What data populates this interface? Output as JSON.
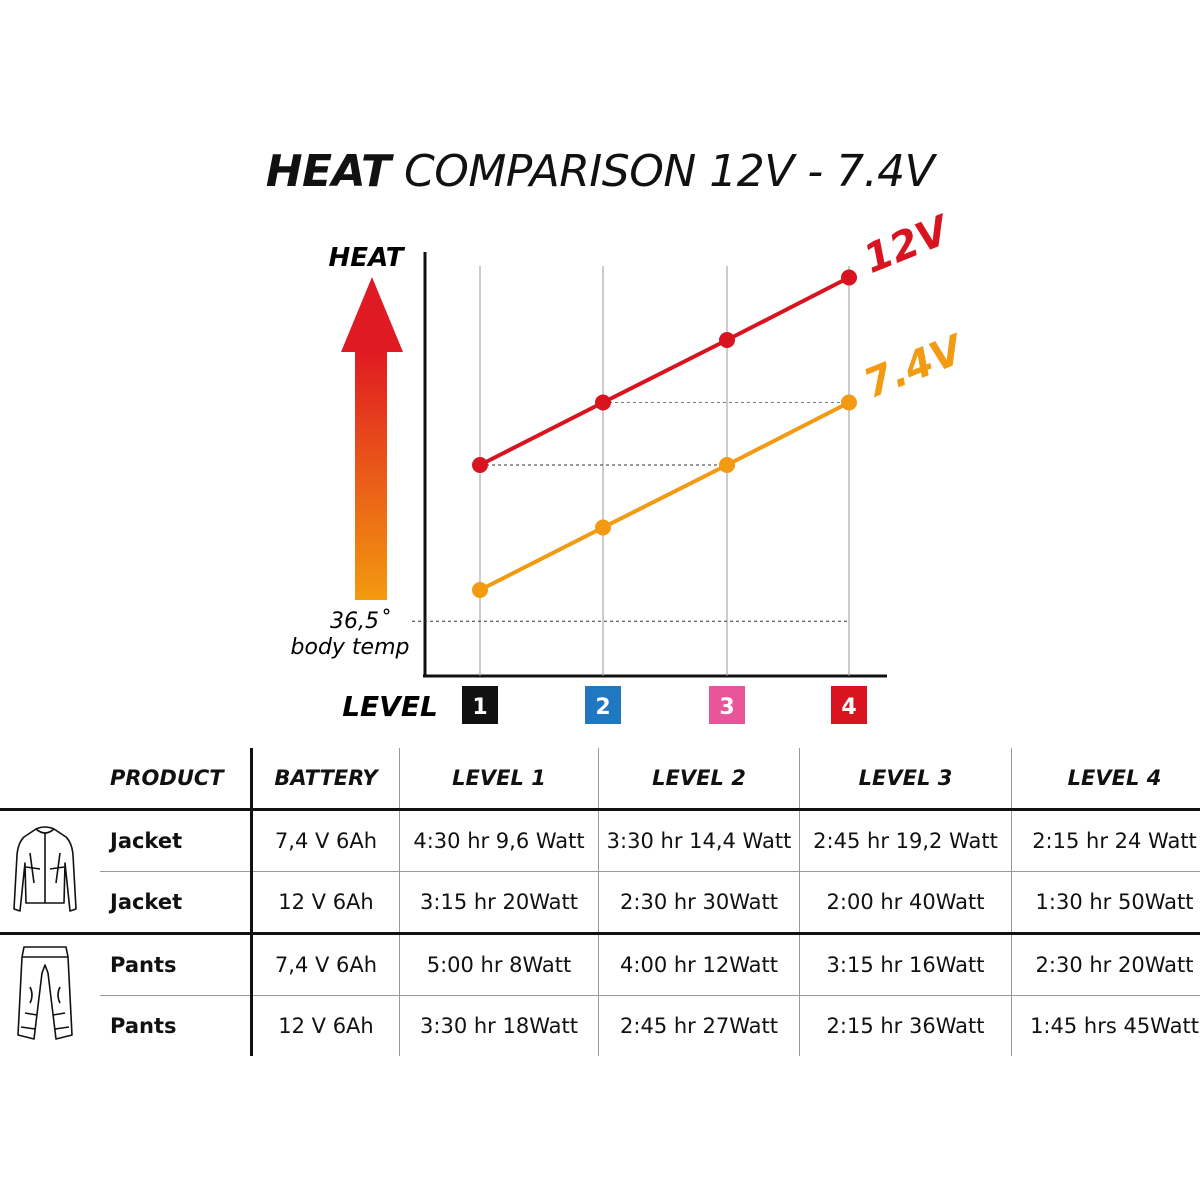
{
  "title": {
    "bold": "HEAT",
    "rest": "COMPARISON 12V - 7.4V"
  },
  "colors": {
    "red": "#d7141f",
    "orange": "#f29a11",
    "black": "#111111",
    "blue": "#1f78c0",
    "pink": "#e8559a"
  },
  "chart_data": {
    "type": "line",
    "ylabel": "HEAT",
    "xlabel": "LEVEL",
    "baseline_label": [
      "36,5˚",
      "body temp"
    ],
    "categories": [
      "1",
      "2",
      "3",
      "4"
    ],
    "category_colors": [
      "#111111",
      "#1f78c0",
      "#e8559a",
      "#d7141f"
    ],
    "series": [
      {
        "name": "12V",
        "color": "#d7141f",
        "values": [
          3,
          4,
          5,
          6
        ]
      },
      {
        "name": "7.4V",
        "color": "#f29a11",
        "values": [
          1,
          2,
          3,
          4
        ]
      }
    ],
    "baseline_value": 0.5,
    "ylim": [
      0,
      6
    ],
    "grid": "vertical"
  },
  "table": {
    "headers": [
      "PRODUCT",
      "BATTERY",
      "LEVEL 1",
      "LEVEL 2",
      "LEVEL 3",
      "LEVEL 4"
    ],
    "rows": [
      {
        "icon": "jacket-icon",
        "product": "Jacket",
        "battery": "7,4 V 6Ah",
        "levels": [
          "4:30 hr 9,6 Watt",
          "3:30 hr 14,4 Watt",
          "2:45 hr 19,2 Watt",
          "2:15 hr 24 Watt"
        ]
      },
      {
        "icon": "",
        "product": "Jacket",
        "battery": "12 V 6Ah",
        "levels": [
          "3:15 hr 20Watt",
          "2:30 hr 30Watt",
          "2:00 hr 40Watt",
          "1:30 hr 50Watt"
        ]
      },
      {
        "icon": "pants-icon",
        "product": "Pants",
        "battery": "7,4 V 6Ah",
        "levels": [
          "5:00 hr 8Watt",
          "4:00 hr 12Watt",
          "3:15 hr 16Watt",
          "2:30 hr 20Watt"
        ]
      },
      {
        "icon": "",
        "product": "Pants",
        "battery": "12 V 6Ah",
        "levels": [
          "3:30 hr 18Watt",
          "2:45 hr 27Watt",
          "2:15 hr 36Watt",
          "1:45 hrs 45Watt"
        ]
      }
    ]
  }
}
